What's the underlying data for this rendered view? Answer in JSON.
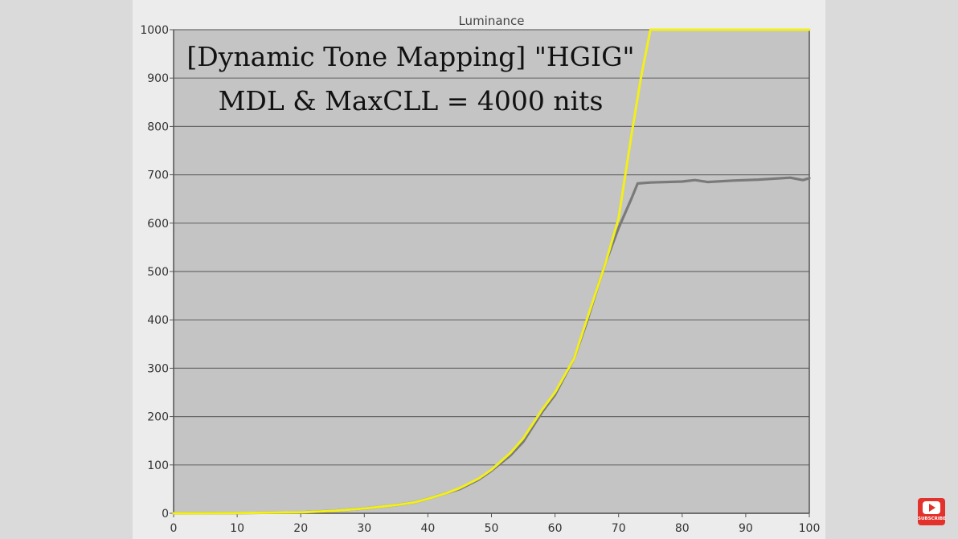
{
  "chart_data": {
    "type": "line",
    "title": "Luminance",
    "annotations": [
      "[Dynamic Tone Mapping] \"HGIG\"",
      "MDL & MaxCLL = 4000 nits"
    ],
    "xlim": [
      0,
      100
    ],
    "ylim": [
      0,
      1000
    ],
    "xticks": [
      0,
      10,
      20,
      30,
      40,
      50,
      60,
      70,
      80,
      90,
      100
    ],
    "yticks": [
      0,
      100,
      200,
      300,
      400,
      500,
      600,
      700,
      800,
      900,
      1000
    ],
    "grid": true,
    "series": [
      {
        "color": "#f2ef1a",
        "x": [
          0,
          10,
          20,
          25,
          30,
          35,
          38,
          40,
          43,
          45,
          48,
          50,
          53,
          55,
          58,
          60,
          63,
          65,
          67,
          68,
          70,
          72,
          73.5,
          75,
          75.5,
          80,
          90,
          100
        ],
        "y": [
          0,
          0.3,
          2,
          5,
          10,
          17,
          23,
          30,
          42,
          52,
          72,
          90,
          125,
          155,
          215,
          250,
          320,
          400,
          480,
          520,
          610,
          780,
          900,
          1000,
          1000,
          1000,
          1000,
          1000
        ]
      },
      {
        "color": "#7a7a7a",
        "x": [
          0,
          10,
          20,
          25,
          30,
          35,
          38,
          40,
          43,
          45,
          48,
          50,
          53,
          55,
          58,
          60,
          63,
          65,
          67,
          68,
          70,
          72,
          73,
          75,
          80,
          82,
          84,
          88,
          92,
          97,
          99,
          100
        ],
        "y": [
          0,
          0.3,
          2,
          5,
          10,
          17,
          23,
          30,
          42,
          50,
          70,
          88,
          120,
          148,
          210,
          245,
          320,
          395,
          480,
          520,
          590,
          650,
          682,
          684,
          686,
          689,
          685,
          688,
          690,
          694,
          689,
          693
        ]
      }
    ]
  },
  "subscribe_label": "SUBSCRIBE"
}
